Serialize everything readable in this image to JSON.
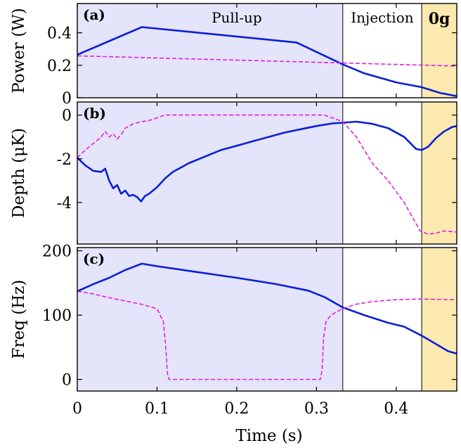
{
  "chart_data": [
    {
      "type": "line",
      "panel_letter": "(a)",
      "ylabel": "Power (W)",
      "ylim": [
        0,
        0.58
      ],
      "yticks": [
        0,
        0.2,
        0.4
      ],
      "ytick_labels": [
        "0",
        "0.2",
        "0.4"
      ],
      "phase_labels": [
        "Pull-up",
        "Injection",
        "0g"
      ],
      "series": [
        {
          "color": "#0a1fd6",
          "style": "solid",
          "x": [
            0,
            0.081,
            0.275,
            0.333,
            0.36,
            0.4,
            0.432,
            0.455,
            0.476
          ],
          "y": [
            0.265,
            0.435,
            0.34,
            0.205,
            0.15,
            0.095,
            0.065,
            0.03,
            0.01
          ]
        },
        {
          "color": "#e020e0",
          "style": "dashed",
          "x": [
            0,
            0.476
          ],
          "y": [
            0.258,
            0.195
          ]
        }
      ]
    },
    {
      "type": "line",
      "panel_letter": "(b)",
      "ylabel": "Depth (μK)",
      "ylim": [
        -5.9,
        0.6
      ],
      "yticks": [
        -4,
        -2,
        0
      ],
      "ytick_labels": [
        "-4",
        "-2",
        "0"
      ],
      "series": [
        {
          "color": "#0a1fd6",
          "style": "solid",
          "x": [
            0,
            0.01,
            0.02,
            0.03,
            0.035,
            0.04,
            0.045,
            0.05,
            0.055,
            0.06,
            0.065,
            0.07,
            0.075,
            0.08,
            0.085,
            0.09,
            0.1,
            0.11,
            0.12,
            0.14,
            0.16,
            0.18,
            0.2,
            0.22,
            0.24,
            0.26,
            0.28,
            0.3,
            0.32,
            0.333,
            0.35,
            0.37,
            0.39,
            0.41,
            0.425,
            0.432,
            0.44,
            0.45,
            0.46,
            0.47,
            0.476
          ],
          "y": [
            -1.95,
            -2.3,
            -2.55,
            -2.6,
            -2.45,
            -3.0,
            -3.35,
            -3.2,
            -3.6,
            -3.45,
            -3.7,
            -3.65,
            -3.75,
            -3.95,
            -3.7,
            -3.6,
            -3.3,
            -2.9,
            -2.6,
            -2.2,
            -1.9,
            -1.6,
            -1.4,
            -1.2,
            -1.0,
            -0.8,
            -0.65,
            -0.5,
            -0.38,
            -0.35,
            -0.3,
            -0.4,
            -0.6,
            -1.0,
            -1.55,
            -1.6,
            -1.45,
            -1.05,
            -0.75,
            -0.55,
            -0.5
          ]
        },
        {
          "color": "#e020e0",
          "style": "dashed",
          "x": [
            0,
            0.01,
            0.02,
            0.03,
            0.035,
            0.04,
            0.045,
            0.05,
            0.055,
            0.06,
            0.07,
            0.08,
            0.09,
            0.11,
            0.14,
            0.2,
            0.26,
            0.31,
            0.333,
            0.35,
            0.37,
            0.39,
            0.41,
            0.43,
            0.44,
            0.45,
            0.46,
            0.476
          ],
          "y": [
            -1.95,
            -1.6,
            -1.3,
            -1.0,
            -0.75,
            -1.0,
            -0.85,
            -1.1,
            -0.9,
            -0.6,
            -0.4,
            -0.3,
            -0.25,
            0.0,
            0.0,
            0.0,
            0.0,
            0.0,
            -0.3,
            -1.0,
            -2.2,
            -3.0,
            -4.0,
            -5.3,
            -5.45,
            -5.4,
            -5.3,
            -5.35
          ]
        }
      ]
    },
    {
      "type": "line",
      "panel_letter": "(c)",
      "ylabel": "Freq (Hz)",
      "xlabel": "Time (s)",
      "xlim": [
        0,
        0.476
      ],
      "ylim": [
        -18,
        205
      ],
      "yticks": [
        0,
        100,
        200
      ],
      "ytick_labels": [
        "0",
        "100",
        "200"
      ],
      "xticks": [
        0,
        0.1,
        0.2,
        0.3,
        0.4
      ],
      "xtick_labels": [
        "0",
        "0.1",
        "0.2",
        "0.3",
        "0.4"
      ],
      "series": [
        {
          "color": "#0a1fd6",
          "style": "solid",
          "x": [
            0,
            0.02,
            0.04,
            0.06,
            0.081,
            0.1,
            0.15,
            0.2,
            0.25,
            0.29,
            0.31,
            0.333,
            0.36,
            0.39,
            0.41,
            0.432,
            0.45,
            0.465,
            0.476
          ],
          "y": [
            137,
            148,
            158,
            170,
            180,
            176,
            167,
            158,
            148,
            138,
            128,
            112,
            100,
            88,
            82,
            68,
            55,
            44,
            40
          ]
        },
        {
          "color": "#e020e0",
          "style": "dashed",
          "x": [
            0,
            0.02,
            0.04,
            0.06,
            0.08,
            0.1,
            0.108,
            0.111,
            0.113,
            0.115,
            0.305,
            0.307,
            0.309,
            0.312,
            0.318,
            0.325,
            0.333,
            0.35,
            0.37,
            0.4,
            0.43,
            0.476
          ],
          "y": [
            137,
            133,
            127,
            122,
            117,
            110,
            90,
            50,
            10,
            0,
            0,
            15,
            65,
            90,
            100,
            105,
            110,
            117,
            121,
            124,
            125,
            124
          ]
        }
      ]
    }
  ],
  "phase_colors": {
    "pull_up": "#e4e4fa",
    "zero_g": "#fce9b0"
  },
  "phase_boundaries_s": [
    0.333,
    0.432
  ]
}
